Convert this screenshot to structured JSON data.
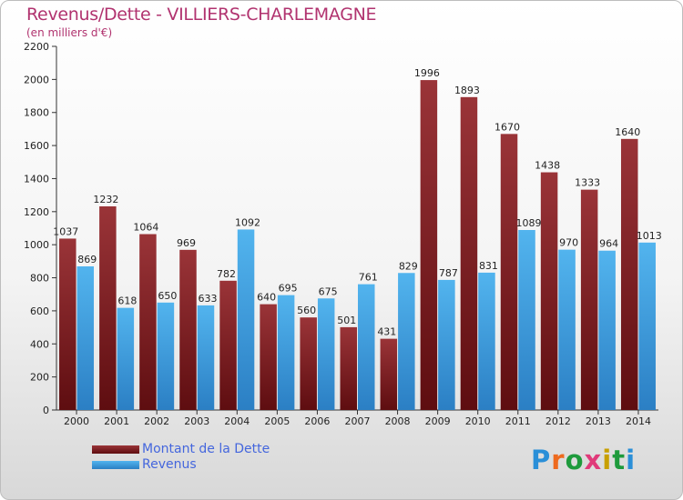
{
  "chart_data": {
    "type": "bar",
    "title": "Revenus/Dette - VILLIERS-CHARLEMAGNE",
    "subtitle": "(en milliers d'€)",
    "categories": [
      "2000",
      "2001",
      "2002",
      "2003",
      "2004",
      "2005",
      "2006",
      "2007",
      "2008",
      "2009",
      "2010",
      "2011",
      "2012",
      "2013",
      "2014"
    ],
    "series": [
      {
        "name": "Montant de la Dette",
        "values": [
          1037,
          1232,
          1064,
          969,
          782,
          640,
          560,
          501,
          431,
          1996,
          1893,
          1670,
          1438,
          1333,
          1640
        ],
        "color": "#7a1a1e"
      },
      {
        "name": "Revenus",
        "values": [
          869,
          618,
          650,
          633,
          1092,
          695,
          675,
          761,
          829,
          787,
          831,
          1089,
          970,
          964,
          1013
        ],
        "color": "#3a9ee0"
      }
    ],
    "yticks": [
      0,
      200,
      400,
      600,
      800,
      1000,
      1200,
      1400,
      1600,
      1800,
      2000,
      2200
    ],
    "ylim": [
      0,
      2200
    ],
    "grid": false,
    "legend_position": "bottom-left"
  },
  "logo": {
    "text": "Proxiti",
    "colors": [
      "#2a8fd8",
      "#ee6a1e",
      "#1e9a3c",
      "#e03a7a",
      "#c8a000",
      "#1e9a3c",
      "#2a8fd8"
    ]
  }
}
